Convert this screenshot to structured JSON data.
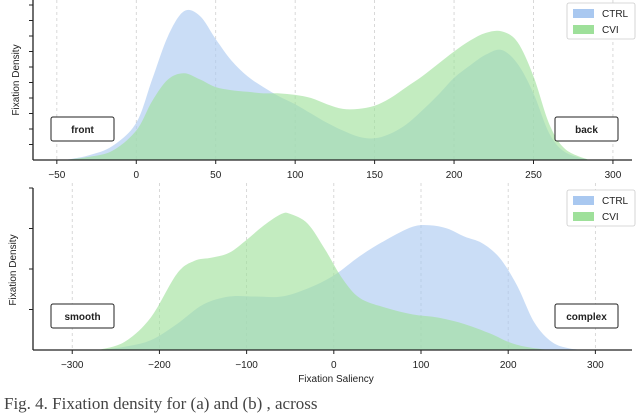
{
  "chart_data": [
    {
      "type": "area",
      "title": "",
      "xlabel": "",
      "ylabel": "Fixation Density",
      "xlim": [
        -65,
        312
      ],
      "ylim": [
        0,
        1.0
      ],
      "xticks": [
        -50,
        0,
        50,
        100,
        150,
        200,
        250,
        300
      ],
      "xtick_labels": [
        "−50",
        "0",
        "50",
        "100",
        "150",
        "200",
        "250",
        "300"
      ],
      "yticks": [
        0.1,
        0.2,
        0.3,
        0.4,
        0.5,
        0.6,
        0.7,
        0.8,
        0.9,
        1.0
      ],
      "grid": "vertical dashed",
      "legend": "top-right",
      "annotations": [
        "front",
        "back"
      ],
      "series": [
        {
          "name": "CTRL",
          "color": "#a9c8f0",
          "x": [
            -45,
            -30,
            -15,
            0,
            10,
            20,
            30,
            40,
            50,
            60,
            70,
            80,
            90,
            100,
            110,
            120,
            130,
            140,
            150,
            160,
            170,
            180,
            190,
            200,
            210,
            220,
            230,
            240,
            250,
            260,
            270,
            285
          ],
          "y": [
            0.0,
            0.03,
            0.09,
            0.24,
            0.52,
            0.8,
            0.96,
            0.93,
            0.78,
            0.64,
            0.54,
            0.47,
            0.41,
            0.36,
            0.3,
            0.24,
            0.19,
            0.15,
            0.14,
            0.17,
            0.23,
            0.32,
            0.42,
            0.53,
            0.61,
            0.68,
            0.71,
            0.62,
            0.43,
            0.17,
            0.05,
            0.0
          ]
        },
        {
          "name": "CVI",
          "color": "#9ee09a",
          "x": [
            -45,
            -30,
            -15,
            0,
            10,
            20,
            30,
            40,
            50,
            60,
            70,
            80,
            90,
            100,
            110,
            120,
            130,
            140,
            150,
            160,
            170,
            180,
            190,
            200,
            210,
            220,
            230,
            240,
            250,
            260,
            270,
            285
          ],
          "y": [
            0.0,
            0.02,
            0.06,
            0.19,
            0.38,
            0.52,
            0.56,
            0.52,
            0.47,
            0.45,
            0.44,
            0.43,
            0.43,
            0.42,
            0.4,
            0.36,
            0.33,
            0.33,
            0.35,
            0.4,
            0.47,
            0.54,
            0.62,
            0.7,
            0.77,
            0.82,
            0.83,
            0.76,
            0.54,
            0.23,
            0.07,
            0.0
          ]
        }
      ]
    },
    {
      "type": "area",
      "title": "",
      "xlabel": "Fixation Saliency",
      "ylabel": "Fixation Density",
      "xlim": [
        -345,
        342
      ],
      "ylim": [
        0,
        1.0
      ],
      "xticks": [
        -300,
        -200,
        -100,
        0,
        100,
        200,
        300
      ],
      "xtick_labels": [
        "−300",
        "−200",
        "−100",
        "0",
        "100",
        "200",
        "300"
      ],
      "yticks": [
        0.25,
        0.5,
        0.75,
        1.0
      ],
      "grid": "vertical dashed",
      "legend": "top-right",
      "annotations": [
        "smooth",
        "complex"
      ],
      "series": [
        {
          "name": "CTRL",
          "color": "#a9c8f0",
          "x": [
            -270,
            -240,
            -210,
            -180,
            -150,
            -120,
            -90,
            -60,
            -30,
            0,
            30,
            60,
            90,
            110,
            130,
            150,
            170,
            190,
            210,
            230,
            250,
            270,
            290
          ],
          "y": [
            0.0,
            0.02,
            0.06,
            0.16,
            0.28,
            0.33,
            0.33,
            0.33,
            0.38,
            0.46,
            0.58,
            0.68,
            0.76,
            0.77,
            0.75,
            0.7,
            0.66,
            0.57,
            0.4,
            0.17,
            0.05,
            0.01,
            0.0
          ]
        },
        {
          "name": "CVI",
          "color": "#9ee09a",
          "x": [
            -270,
            -240,
            -210,
            -180,
            -160,
            -140,
            -120,
            -100,
            -80,
            -60,
            -50,
            -30,
            -10,
            10,
            30,
            60,
            90,
            120,
            150,
            180,
            200,
            220,
            250,
            280
          ],
          "y": [
            0.0,
            0.05,
            0.2,
            0.47,
            0.55,
            0.57,
            0.6,
            0.68,
            0.77,
            0.84,
            0.84,
            0.78,
            0.62,
            0.44,
            0.32,
            0.26,
            0.22,
            0.2,
            0.16,
            0.1,
            0.05,
            0.02,
            0.0,
            0.0
          ]
        }
      ]
    }
  ],
  "caption": "Fig. 4.   Fixation density for  (a)  and  (b) , across"
}
